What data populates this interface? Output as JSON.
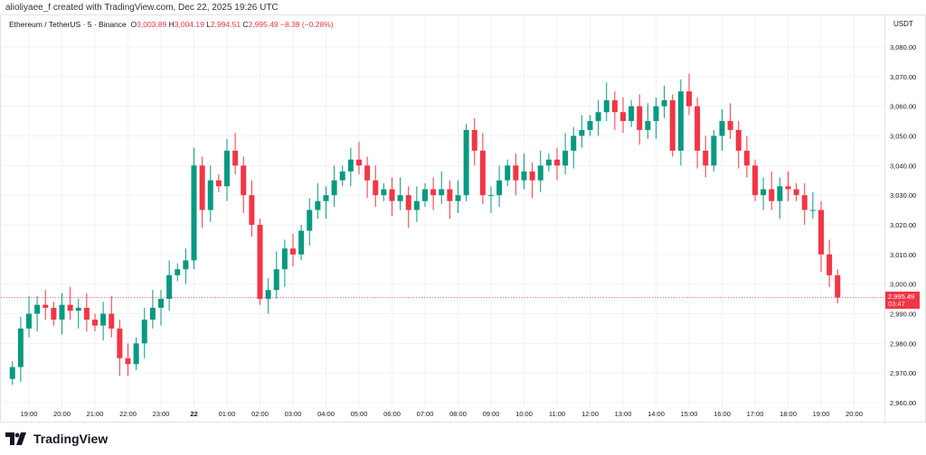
{
  "credit": "alioliyaee_f created with TradingView.com, Dec 22, 2025 19:26 UTC",
  "legend": {
    "symbol": "Ethereum / TetherUS · 5 · Binance",
    "o_label": "O",
    "o": "3,003.89",
    "h_label": "H",
    "h": "3,004.19",
    "l_label": "L",
    "l": "2,994.51",
    "c_label": "C",
    "c": "2,995.49",
    "change": "−8.39 (−0.28%)"
  },
  "currency": "USDT",
  "last_price": {
    "price": "2,995.49",
    "countdown": "03:47",
    "value": 2995.49
  },
  "colors": {
    "up": "#089981",
    "down": "#f23645",
    "grid": "#f0f3fa"
  },
  "brand": "TradingView",
  "chart_data": {
    "type": "candlestick",
    "interval": "15m",
    "start_time": "18:30",
    "ylim": [
      2955,
      3085
    ],
    "y_ticks": [
      2960,
      2970,
      2980,
      2990,
      3000,
      3010,
      3020,
      3030,
      3040,
      3050,
      3060,
      3070,
      3080
    ],
    "y_tick_labels": [
      "2,960.00",
      "2,970.00",
      "2,980.00",
      "2,990.00",
      "3,000.00",
      "3,010.00",
      "3,020.00",
      "3,030.00",
      "3,040.00",
      "3,050.00",
      "3,060.00",
      "3,070.00",
      "3,080.00"
    ],
    "x_tick_labels": [
      "19:00",
      "20:00",
      "21:00",
      "22:00",
      "23:00",
      "22",
      "01:00",
      "02:00",
      "03:00",
      "04:00",
      "05:00",
      "06:00",
      "07:00",
      "08:00",
      "09:00",
      "10:00",
      "11:00",
      "12:00",
      "13:00",
      "14:00",
      "15:00",
      "16:00",
      "17:00",
      "18:00",
      "19:00",
      "20:00"
    ],
    "closes": [
      2972,
      2985,
      2990,
      2993,
      2992,
      2988,
      2993,
      2991,
      2992,
      2988,
      2986,
      2990,
      2985,
      2975,
      2973,
      2980,
      2988,
      2992,
      2995,
      3003,
      3005,
      3008,
      3040,
      3025,
      3035,
      3033,
      3045,
      3040,
      3030,
      3020,
      2995,
      2998,
      3005,
      3012,
      3010,
      3018,
      3025,
      3028,
      3030,
      3035,
      3038,
      3042,
      3040,
      3035,
      3030,
      3032,
      3028,
      3030,
      3025,
      3028,
      3032,
      3030,
      3032,
      3028,
      3030,
      3052,
      3045,
      3030,
      3030,
      3035,
      3040,
      3035,
      3038,
      3035,
      3040,
      3042,
      3040,
      3045,
      3050,
      3052,
      3055,
      3058,
      3062,
      3058,
      3055,
      3060,
      3052,
      3055,
      3060,
      3062,
      3045,
      3065,
      3060,
      3045,
      3040,
      3050,
      3055,
      3052,
      3045,
      3040,
      3030,
      3032,
      3028,
      3033,
      3032,
      3030,
      3025,
      3025,
      3010,
      3003,
      2995.49
    ]
  }
}
